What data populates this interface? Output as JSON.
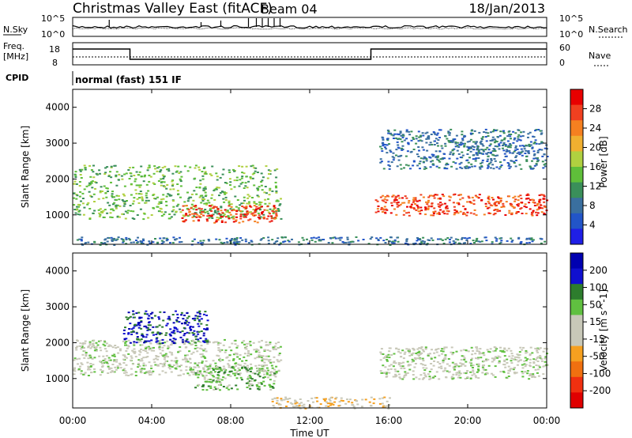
{
  "header": {
    "title": "Christmas Valley East (fitACF)",
    "beam": "Beam 04",
    "date": "18/Jan/2013"
  },
  "noise_panel": {
    "left_label": "N.Sky",
    "left_ticks": [
      "10^5",
      "10^0"
    ],
    "right_ticks": [
      "10^5",
      "10^0"
    ],
    "right_label": "N.Search"
  },
  "freq_panel": {
    "label_line1": "Freq.",
    "label_line2": "[MHz]",
    "left_ticks": [
      "18",
      "8"
    ],
    "right_ticks": [
      "60",
      "0"
    ],
    "right_label": "Nave",
    "freq_steps": [
      {
        "t_start": 0.0,
        "t_end": 2.9,
        "level": "high"
      },
      {
        "t_start": 2.9,
        "t_end": 15.1,
        "level": "low"
      },
      {
        "t_start": 15.1,
        "t_end": 24.0,
        "level": "high"
      }
    ]
  },
  "cpid": {
    "label": "CPID",
    "mode": "normal (fast) 151 IF"
  },
  "x_axis": {
    "label": "Time UT",
    "ticks": [
      "00:00",
      "04:00",
      "08:00",
      "12:00",
      "16:00",
      "20:00",
      "00:00"
    ]
  },
  "colors": {
    "power_scale": [
      "#1f1fe6",
      "#2255c8",
      "#3a6f9f",
      "#3a8f5a",
      "#5fbf3a",
      "#b0d040",
      "#f0b030",
      "#f58020",
      "#f04020",
      "#e80000"
    ],
    "velocity_scale": [
      "#0000b0",
      "#1010d0",
      "#2d7d2d",
      "#60c040",
      "#c8c8b8",
      "#c8c8b8",
      "#f5a020",
      "#f07010",
      "#f03010",
      "#e00000"
    ]
  },
  "chart_data": [
    {
      "type": "heatmap",
      "title": "",
      "xlabel": "Time UT",
      "ylabel": "Slant Range [km]",
      "xlim": [
        0,
        24
      ],
      "ylim": [
        180,
        4500
      ],
      "yticks": [
        1000,
        2000,
        3000,
        4000
      ],
      "colorbar": {
        "label": "Power [dB]",
        "ticks": [
          "28",
          "24",
          "20",
          "16",
          "12",
          "8",
          "4"
        ],
        "range": [
          0,
          30
        ]
      },
      "features": [
        {
          "t_start": 0.0,
          "t_end": 10.5,
          "range_start": 900,
          "range_end": 2400,
          "value": 14
        },
        {
          "t_start": 5.5,
          "t_end": 10.3,
          "range_start": 800,
          "range_end": 1300,
          "value": 27
        },
        {
          "t_start": 15.3,
          "t_end": 24.0,
          "range_start": 1000,
          "range_end": 1600,
          "value": 27
        },
        {
          "t_start": 15.5,
          "t_end": 24.0,
          "range_start": 2300,
          "range_end": 3400,
          "value": 7
        },
        {
          "t_start": 0.0,
          "t_end": 24.0,
          "range_start": 180,
          "range_end": 400,
          "value": 6
        }
      ]
    },
    {
      "type": "heatmap",
      "title": "",
      "xlabel": "Time UT",
      "ylabel": "Slant Range [km]",
      "xlim": [
        0,
        24
      ],
      "ylim": [
        180,
        4500
      ],
      "yticks": [
        1000,
        2000,
        3000,
        4000
      ],
      "colorbar": {
        "label": "Velocity [m s^-1]",
        "ticks": [
          "200",
          "100",
          "50",
          "15",
          "-15",
          "-50",
          "-100",
          "-200"
        ],
        "range": [
          -250,
          250
        ]
      },
      "features": [
        {
          "t_start": 0.0,
          "t_end": 10.5,
          "range_start": 1100,
          "range_end": 2100,
          "value": 0
        },
        {
          "t_start": 2.5,
          "t_end": 6.8,
          "range_start": 2000,
          "range_end": 2900,
          "value": 200
        },
        {
          "t_start": 6.0,
          "t_end": 10.3,
          "range_start": 700,
          "range_end": 1400,
          "value": 60
        },
        {
          "t_start": 15.5,
          "t_end": 24.0,
          "range_start": 1000,
          "range_end": 1900,
          "value": 0
        },
        {
          "t_start": 10.0,
          "t_end": 16.0,
          "range_start": 180,
          "range_end": 500,
          "value": -50
        }
      ]
    }
  ]
}
